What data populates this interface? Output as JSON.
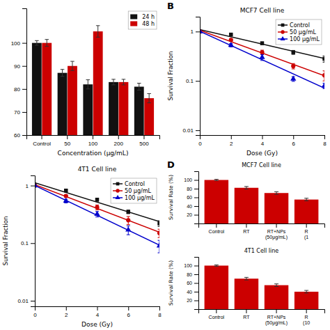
{
  "chart_data": [
    {
      "type": "bar",
      "xlabel": "Concentration (μg/mL)",
      "categories": [
        "Control",
        "50",
        "100",
        "200",
        "500"
      ],
      "series": [
        {
          "name": "24 h",
          "color": "#111111",
          "values": [
            100,
            87,
            82,
            83,
            81
          ],
          "errors": [
            1.0,
            1.5,
            2.0,
            1.2,
            1.5
          ]
        },
        {
          "name": "48 h",
          "color": "#cc0000",
          "values": [
            100,
            90,
            105,
            83,
            76
          ],
          "errors": [
            1.5,
            2.0,
            2.5,
            1.2,
            2.0
          ]
        }
      ],
      "ylim": [
        60,
        115
      ],
      "yticks": [
        60,
        70,
        80,
        90,
        100
      ],
      "legend": "upper right"
    },
    {
      "type": "scatter",
      "title": "MCF7 Cell line",
      "xlabel": "Dose (Gy)",
      "ylabel": "Survival Fraction",
      "annotations": [
        "B"
      ],
      "log": "y",
      "x": [
        0,
        2,
        4,
        6,
        8
      ],
      "series": [
        {
          "name": "Control",
          "color": "#111111",
          "marker": "square",
          "values": [
            1.0,
            0.87,
            0.58,
            0.38,
            0.28
          ],
          "errors": [
            0.01,
            0.025,
            0.035,
            0.035,
            0.04
          ],
          "fit_x": [
            0,
            8
          ],
          "fit_values": [
            1.09411,
            0.28372
          ]
        },
        {
          "name": "50 μg/mL",
          "color": "#cc0000",
          "marker": "circle",
          "values": [
            1.0,
            0.68,
            0.38,
            0.2,
            0.13
          ],
          "errors": [
            0.01,
            0.035,
            0.04,
            0.025,
            0.03
          ],
          "fit_x": [
            0,
            8
          ],
          "fit_values": [
            1.06212,
            0.12727
          ]
        },
        {
          "name": "100 μg/mL",
          "color": "#0000cc",
          "marker": "triangle",
          "values": [
            1.0,
            0.53,
            0.3,
            0.11,
            0.08
          ],
          "errors": [
            0.01,
            0.04,
            0.04,
            0.012,
            0.01
          ],
          "fit_x": [
            0,
            8
          ],
          "fit_values": [
            1.01045,
            0.07142
          ]
        }
      ],
      "xlim": [
        0,
        8
      ],
      "xticks": [
        0,
        2,
        4,
        6,
        8
      ],
      "ylim": [
        0.008,
        2.0
      ],
      "yticks": [
        0.01,
        0.1,
        1
      ],
      "legend": "upper right"
    },
    {
      "type": "scatter",
      "title": "4T1 Cell line",
      "xlabel": "Dose (Gy)",
      "ylabel": "Survival Fraction",
      "log": "y",
      "x": [
        0,
        2,
        4,
        6,
        8
      ],
      "series": [
        {
          "name": "Control",
          "color": "#111111",
          "marker": "square",
          "values": [
            1.0,
            0.82,
            0.57,
            0.35,
            0.22
          ],
          "errors": [
            0.01,
            0.025,
            0.035,
            0.025,
            0.025
          ],
          "fit_x": [
            0,
            8
          ],
          "fit_values": [
            1.11742,
            0.23673
          ]
        },
        {
          "name": "50 μg/mL",
          "color": "#cc0000",
          "marker": "circle",
          "values": [
            1.0,
            0.66,
            0.42,
            0.25,
            0.15
          ],
          "errors": [
            0.01,
            0.035,
            0.04,
            0.04,
            0.025
          ],
          "fit_x": [
            0,
            8
          ],
          "fit_values": [
            1.04052,
            0.1547
          ]
        },
        {
          "name": "100 μg/mL",
          "color": "#0000cc",
          "marker": "triangle",
          "values": [
            1.0,
            0.54,
            0.32,
            0.17,
            0.09
          ],
          "errors": [
            0.01,
            0.04,
            0.035,
            0.03,
            0.022
          ],
          "fit_x": [
            0,
            8
          ],
          "fit_values": [
            1.00725,
            0.09242
          ]
        }
      ],
      "xlim": [
        0,
        8
      ],
      "xticks": [
        0,
        2,
        4,
        6,
        8
      ],
      "ylim": [
        0.008,
        1.5
      ],
      "yticks": [
        0.01,
        0.1,
        1
      ],
      "legend": "upper right"
    },
    {
      "type": "bar",
      "title": "MCF7 Cell line",
      "ylabel": "Survival Rate (%)",
      "annotations": [
        "D"
      ],
      "categories": [
        "Control",
        "RT",
        "RT+NPs\n(50μg/mL)",
        "R\n(1"
      ],
      "values": [
        100,
        82,
        70,
        55
      ],
      "errors": [
        1.5,
        3,
        3,
        3
      ],
      "color": "#cc0000",
      "ylim": [
        0,
        120
      ],
      "yticks": [
        20,
        40,
        60,
        80,
        100
      ]
    },
    {
      "type": "bar",
      "title": "4T1 Cell line",
      "ylabel": "Survival Rate (%)",
      "categories": [
        "Control",
        "RT",
        "RT+NPs\n(50μg/mL)",
        "R\n(10"
      ],
      "values": [
        100,
        70,
        55,
        40
      ],
      "errors": [
        1.5,
        3,
        3,
        3
      ],
      "color": "#cc0000",
      "ylim": [
        0,
        120
      ],
      "yticks": [
        20,
        40,
        60,
        80,
        100
      ]
    }
  ]
}
